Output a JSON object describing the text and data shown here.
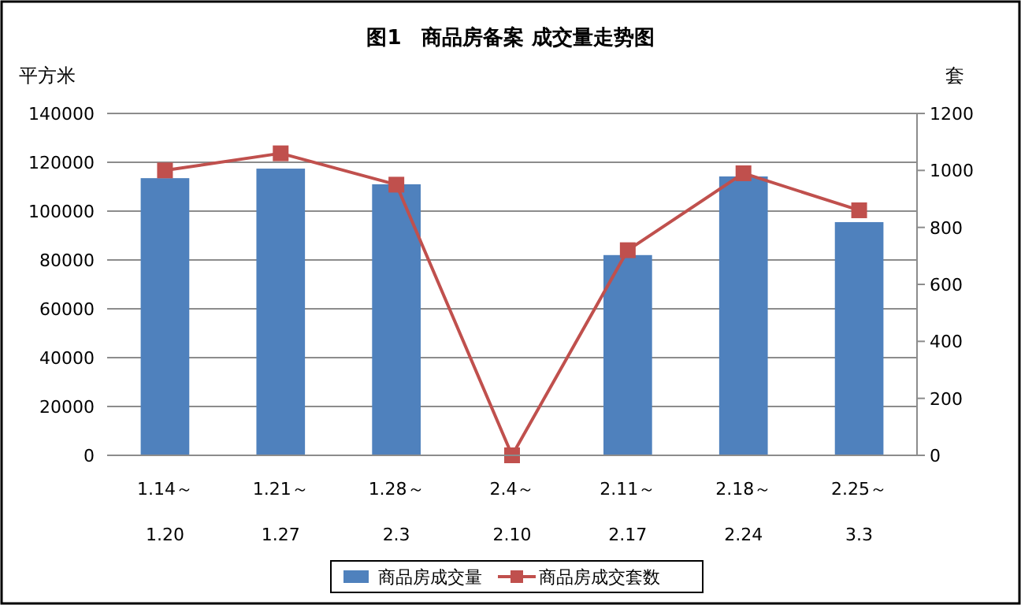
{
  "chart_data": {
    "type": "bar",
    "title": "图1　商品房备案 成交量走势图",
    "ylabel": "平方米",
    "y2label": "套",
    "categories": [
      "1.14～\n1.20",
      "1.21～\n1.27",
      "1.28～\n2.3",
      "2.4～\n2.10",
      "2.11～\n2.17",
      "2.18～\n2.24",
      "2.25～\n3.3"
    ],
    "series": [
      {
        "name": "商品房成交量",
        "color": "#4f81bd",
        "values": [
          113500,
          117400,
          111000,
          0,
          82000,
          114200,
          95500
        ]
      },
      {
        "name": "商品房成交套数",
        "type": "line",
        "axis": "y2",
        "color": "#c0504d",
        "marker": "square",
        "values": [
          1000,
          1060,
          950,
          0,
          720,
          990,
          860
        ]
      }
    ],
    "ylim": [
      0,
      140000
    ],
    "yticks": [
      0,
      20000,
      40000,
      60000,
      80000,
      100000,
      120000,
      140000
    ],
    "y2lim": [
      0,
      1200
    ],
    "y2ticks": [
      0,
      200,
      400,
      600,
      800,
      1000,
      1200
    ],
    "grid": "y",
    "legend": "bottom"
  }
}
